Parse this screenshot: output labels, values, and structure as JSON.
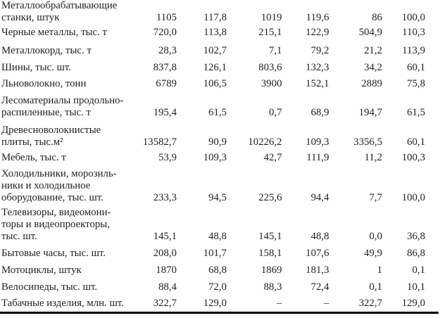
{
  "page": {
    "background_color": "#ffffff",
    "text_color": "#1f1f1f",
    "rule_color": "#000000"
  },
  "table": {
    "rows": [
      {
        "label_lines": [
          "Металлообрабатывающие",
          "станки, штук"
        ],
        "values": [
          "1105",
          "117,8",
          "1019",
          "119,6",
          "86",
          "100,0"
        ]
      },
      {
        "label_lines": [
          "Черные металлы, тыс. т"
        ],
        "values": [
          "720,0",
          "113,8",
          "215,1",
          "122,9",
          "504,9",
          "110,3"
        ]
      },
      {
        "label_lines": [
          "Металлокорд, тыс. т"
        ],
        "values": [
          "28,3",
          "102,7",
          "7,1",
          "79,2",
          "21,2",
          "113,9"
        ]
      },
      {
        "label_lines": [
          "Шины, тыс. шт."
        ],
        "values": [
          "837,8",
          "126,1",
          "803,6",
          "132,3",
          "34,2",
          "60,1"
        ]
      },
      {
        "label_lines": [
          "Льноволокно, тонн"
        ],
        "values": [
          "6789",
          "106,5",
          "3900",
          "152,1",
          "2889",
          "75,8"
        ]
      },
      {
        "label_lines": [
          "Лесоматериалы продольно-",
          "распиленные, тыс. т"
        ],
        "values": [
          "195,4",
          "61,5",
          "0,7",
          "68,9",
          "194,7",
          "61,5"
        ]
      },
      {
        "label_lines": [
          "Древесноволокнистые",
          "плиты, тыс.м²"
        ],
        "values": [
          "13582,7",
          "90,9",
          "10226,2",
          "109,3",
          "3356,5",
          "60,1"
        ]
      },
      {
        "label_lines": [
          "Мебель, тыс. т"
        ],
        "values": [
          "53,9",
          "109,3",
          "42,7",
          "111,9",
          "11,2",
          "100,3"
        ]
      },
      {
        "label_lines": [
          "Холодильники, морозиль-",
          "ники и холодильное",
          "оборудование, тыс. шт."
        ],
        "values": [
          "233,3",
          "94,5",
          "225,6",
          "94,4",
          "7,7",
          "100,0"
        ]
      },
      {
        "label_lines": [
          "Телевизоры, видеомони-",
          "торы и видеопроекторы,",
          "тыс. шт."
        ],
        "values": [
          "145,1",
          "48,8",
          "145,1",
          "48,8",
          "0,0",
          "36,8"
        ]
      },
      {
        "label_lines": [
          "Бытовые часы, тыс. шт."
        ],
        "values": [
          "208,0",
          "101,7",
          "158,1",
          "107,6",
          "49,9",
          "86,8"
        ]
      },
      {
        "label_lines": [
          "Мотоциклы, штук"
        ],
        "values": [
          "1870",
          "68,8",
          "1869",
          "181,3",
          "1",
          "0,1"
        ]
      },
      {
        "label_lines": [
          "Велосипеды, тыс. шт."
        ],
        "values": [
          "88,4",
          "72,0",
          "88,3",
          "72,4",
          "0,1",
          "10,1"
        ]
      },
      {
        "label_lines": [
          "Табачные изделия, млн. шт."
        ],
        "values": [
          "322,7",
          "129,0",
          "–",
          "–",
          "322,7",
          "129,0"
        ]
      }
    ]
  }
}
